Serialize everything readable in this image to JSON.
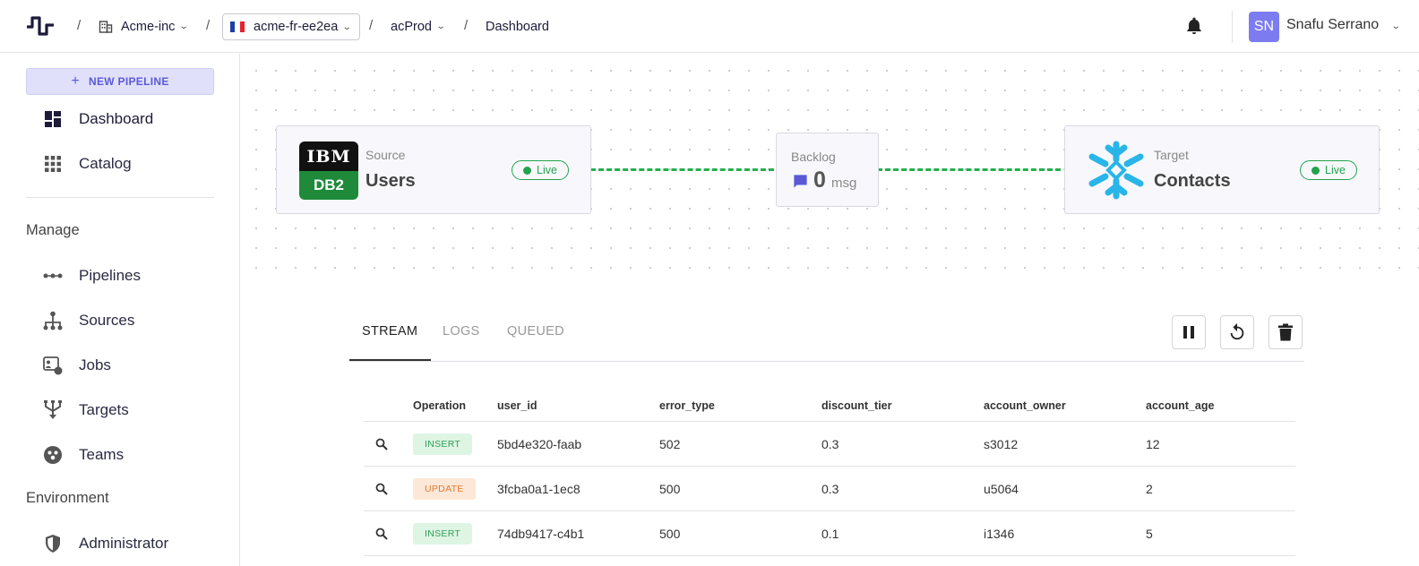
{
  "header": {
    "org": "Acme-inc",
    "cluster": "acme-fr-ee2ea",
    "env": "acProd",
    "page": "Dashboard",
    "user_initials": "SN",
    "user_name": "Snafu Serrano",
    "separator": "/"
  },
  "sidebar": {
    "new_pipeline": "NEW PIPELINE",
    "items_top": [
      {
        "label": "Dashboard",
        "icon": "dashboard-icon"
      },
      {
        "label": "Catalog",
        "icon": "grid-icon"
      }
    ],
    "manage_label": "Manage",
    "manage_items": [
      {
        "label": "Pipelines",
        "icon": "pipeline-icon"
      },
      {
        "label": "Sources",
        "icon": "sitemap-icon"
      },
      {
        "label": "Jobs",
        "icon": "jobs-icon"
      },
      {
        "label": "Targets",
        "icon": "targets-icon"
      },
      {
        "label": "Teams",
        "icon": "teams-icon"
      }
    ],
    "environment_label": "Environment",
    "environment_items": [
      {
        "label": "Administrator",
        "icon": "shield-icon"
      }
    ]
  },
  "flow": {
    "source": {
      "kind": "Source",
      "name": "Users",
      "status": "Live",
      "logo_text_top": "IBM",
      "logo_text_bottom": "DB2"
    },
    "backlog": {
      "label": "Backlog",
      "count": "0",
      "unit": "msg"
    },
    "target": {
      "kind": "Target",
      "name": "Contacts",
      "status": "Live"
    }
  },
  "tabs": [
    "STREAM",
    "LOGS",
    "QUEUED"
  ],
  "table": {
    "columns": [
      "Operation",
      "user_id",
      "error_type",
      "discount_tier",
      "account_owner",
      "account_age"
    ],
    "rows": [
      {
        "op": "INSERT",
        "user_id": "5bd4e320-faab",
        "error_type": "502",
        "discount_tier": "0.3",
        "account_owner": "s3012",
        "account_age": "12"
      },
      {
        "op": "UPDATE",
        "user_id": "3fcba0a1-1ec8",
        "error_type": "500",
        "discount_tier": "0.3",
        "account_owner": "u5064",
        "account_age": "2"
      },
      {
        "op": "INSERT",
        "user_id": "74db9417-c4b1",
        "error_type": "500",
        "discount_tier": "0.1",
        "account_owner": "i1346",
        "account_age": "5"
      }
    ]
  },
  "colors": {
    "accent": "#5a5ad6",
    "live": "#23a24d",
    "avatar": "#7c7cf0",
    "snowflake": "#29b5e8",
    "db2_green": "#1e8a3a"
  }
}
